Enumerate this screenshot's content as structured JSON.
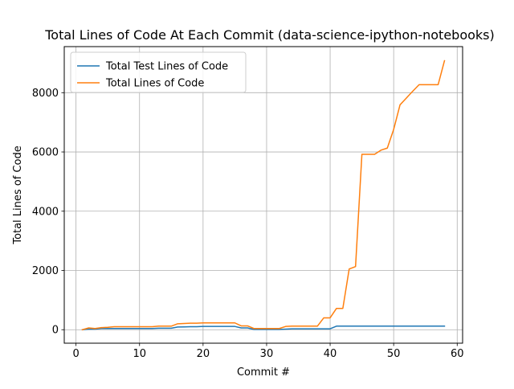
{
  "chart_data": {
    "type": "line",
    "title": "Total Lines of Code At Each Commit (data-science-ipython-notebooks)",
    "xlabel": "Commit #",
    "ylabel": "Total Lines of Code",
    "xlim": [
      -1.85,
      60.85
    ],
    "ylim": [
      -455,
      9555
    ],
    "xticks": [
      0,
      10,
      20,
      30,
      40,
      50,
      60
    ],
    "yticks": [
      0,
      2000,
      4000,
      6000,
      8000
    ],
    "grid": true,
    "legend_position": "top-left",
    "series": [
      {
        "name": "Total Test Lines of Code",
        "color": "#1f77b4",
        "x": [
          1,
          2,
          3,
          4,
          5,
          6,
          7,
          8,
          9,
          10,
          11,
          12,
          13,
          14,
          15,
          16,
          17,
          18,
          19,
          20,
          21,
          22,
          23,
          24,
          25,
          26,
          27,
          28,
          29,
          30,
          31,
          32,
          33,
          34,
          35,
          36,
          37,
          38,
          39,
          40,
          41,
          42,
          43,
          44,
          45,
          46,
          47,
          48,
          49,
          50,
          51,
          52,
          53,
          54,
          55,
          56,
          57,
          58
        ],
        "y": [
          0,
          20,
          20,
          40,
          40,
          40,
          40,
          40,
          40,
          40,
          40,
          40,
          50,
          50,
          50,
          90,
          95,
          100,
          100,
          110,
          110,
          110,
          110,
          110,
          110,
          60,
          60,
          10,
          10,
          10,
          10,
          10,
          20,
          30,
          30,
          30,
          30,
          30,
          30,
          30,
          120,
          120,
          120,
          120,
          120,
          120,
          120,
          120,
          120,
          120,
          120,
          120,
          120,
          120,
          120,
          120,
          120,
          120
        ]
      },
      {
        "name": "Total Lines of Code",
        "color": "#ff7f0e",
        "x": [
          1,
          2,
          3,
          4,
          5,
          6,
          7,
          8,
          9,
          10,
          11,
          12,
          13,
          14,
          15,
          16,
          17,
          18,
          19,
          20,
          21,
          22,
          23,
          24,
          25,
          26,
          27,
          28,
          29,
          30,
          31,
          32,
          33,
          34,
          35,
          36,
          37,
          38,
          39,
          40,
          41,
          42,
          43,
          44,
          45,
          46,
          47,
          48,
          49,
          50,
          51,
          52,
          53,
          54,
          55,
          56,
          57,
          58
        ],
        "y": [
          0,
          60,
          40,
          70,
          80,
          100,
          100,
          100,
          100,
          100,
          100,
          100,
          120,
          120,
          120,
          200,
          210,
          220,
          220,
          230,
          230,
          230,
          230,
          230,
          230,
          130,
          130,
          40,
          40,
          40,
          40,
          40,
          110,
          120,
          120,
          120,
          120,
          120,
          400,
          400,
          720,
          720,
          2050,
          2130,
          5920,
          5920,
          5920,
          6060,
          6130,
          6760,
          7590,
          7820,
          8050,
          8270,
          8270,
          8270,
          8270,
          9080
        ]
      }
    ]
  }
}
